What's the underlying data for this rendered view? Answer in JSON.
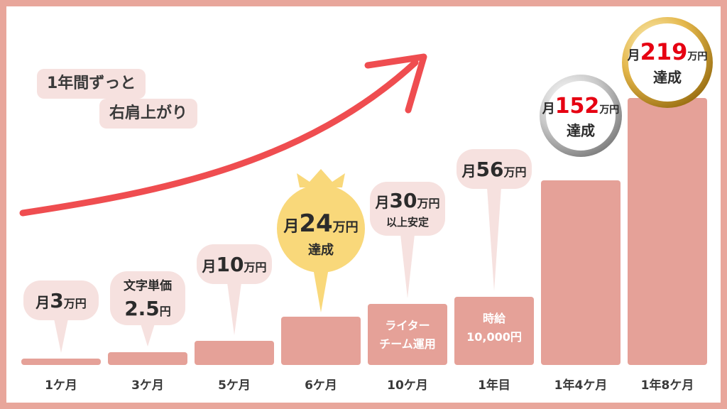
{
  "colors": {
    "bar": "#e5a198",
    "frame": "#e8a69b",
    "bubble": "#f6e1df",
    "gold_bubble": "#f9d87a",
    "arrow": "#ef4d50",
    "highlight": "#e60012"
  },
  "tag": {
    "line1": "1年間ずっと",
    "line2": "右肩上がり"
  },
  "chart_data": {
    "type": "bar",
    "title": "",
    "xlabel": "",
    "ylabel": "",
    "unit": "万円",
    "categories": [
      "1ケ月",
      "3ケ月",
      "5ケ月",
      "6ケ月",
      "10ケ月",
      "1年目",
      "1年4ケ月",
      "1年8ケ月"
    ],
    "values": [
      3,
      5,
      10,
      24,
      30,
      56,
      152,
      219
    ],
    "bar_texts": [
      "",
      "",
      "",
      "",
      "ライター\nチーム運用",
      "時給\n10,000円",
      "",
      ""
    ],
    "annotations": [
      {
        "bar": 0,
        "style": "bubble",
        "top": "",
        "prefix": "月",
        "num": "3",
        "unit": "万円",
        "note": ""
      },
      {
        "bar": 1,
        "style": "bubble",
        "top": "文字単価",
        "prefix": "",
        "num": "2.5",
        "unit": "円",
        "note": ""
      },
      {
        "bar": 2,
        "style": "bubble",
        "top": "",
        "prefix": "月",
        "num": "10",
        "unit": "万円",
        "note": ""
      },
      {
        "bar": 3,
        "style": "gold",
        "top": "",
        "prefix": "月",
        "num": "24",
        "unit": "万円",
        "note": "達成"
      },
      {
        "bar": 4,
        "style": "bubble",
        "top": "",
        "prefix": "月",
        "num": "30",
        "unit": "万円",
        "note": "以上安定"
      },
      {
        "bar": 5,
        "style": "bubble",
        "top": "",
        "prefix": "月",
        "num": "56",
        "unit": "万円",
        "note": ""
      },
      {
        "bar": 6,
        "style": "silver",
        "top": "",
        "prefix": "月",
        "num": "152",
        "unit": "万円",
        "note": "達成"
      },
      {
        "bar": 7,
        "style": "goldmedal",
        "top": "",
        "prefix": "月",
        "num": "219",
        "unit": "万円",
        "note": "達成"
      }
    ]
  }
}
